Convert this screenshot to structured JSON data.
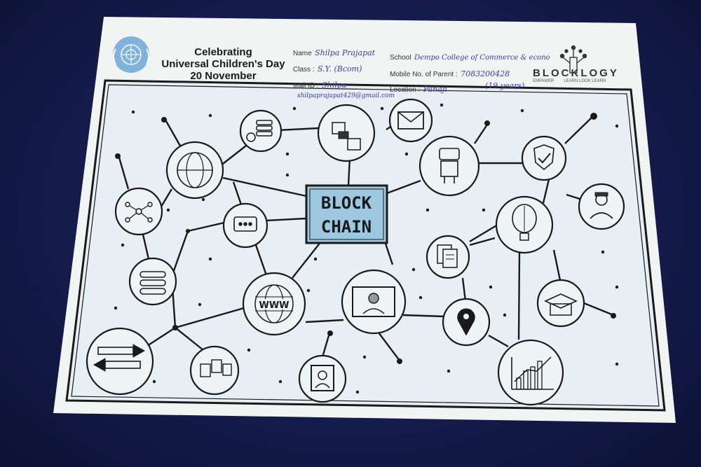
{
  "header": {
    "title_lines": [
      "Celebrating",
      "Universal Children's Day",
      "20 November"
    ],
    "fields": {
      "name_label": "Name",
      "name_value": "Shilpa Prajapat",
      "class_label": "Class :",
      "class_value": "S.Y. (Bcom)",
      "mail_label": "Mail ID :",
      "mail_value": "Shilpa",
      "mail_value_2": "shilpaprajapat429@gmail.com",
      "school_label": "School",
      "school_value": "Dempo College of Commerce & econo",
      "mobile_label": "Mobile No. of Parent :",
      "mobile_value": "7083200428",
      "age_value": "(19 years)",
      "location_label": "Location :",
      "location_value": "Panaji"
    },
    "logo": {
      "word": "BLOCKLOGY",
      "tagline": "LEARN LOOK LEARN",
      "small": "EMPAWER"
    }
  },
  "diagram": {
    "center_line_1": "BLOCK",
    "center_line_2": "CHAIN",
    "www_label": "WWW",
    "icons": [
      "coins-icon",
      "puzzle-icon",
      "envelope-icon",
      "globe-icon",
      "robot-icon",
      "shield-check-icon",
      "network-icon",
      "chat-bubble-icon",
      "user-graduate-icon",
      "brain-bulb-icon",
      "documents-icon",
      "flowchart-icon",
      "www-globe-icon",
      "monitor-user-icon",
      "location-pin-icon",
      "graduation-cap-icon",
      "arrows-icon",
      "team-cards-icon",
      "portrait-frame-icon",
      "bar-chart-icon"
    ]
  },
  "colors": {
    "paper": "#f3f5f5",
    "background": "#141b4a",
    "ink": "#1a1a1a",
    "center_fill": "#9ec8e0",
    "pencil_blue": "#cfe0ee",
    "handwriting": "#3a3aa8"
  }
}
